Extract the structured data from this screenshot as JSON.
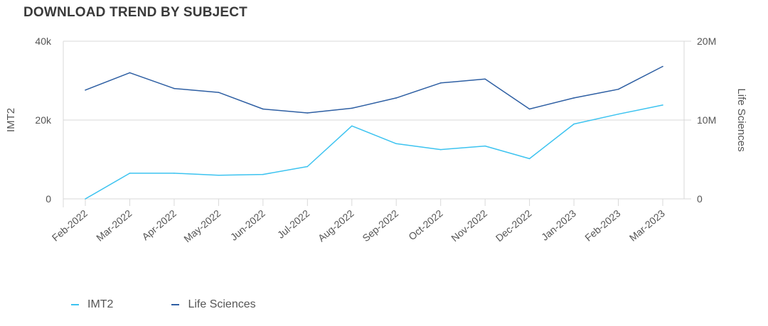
{
  "header": {
    "title": "DOWNLOAD TREND BY SUBJECT"
  },
  "colors": {
    "imt2": "#3cc3f0",
    "life_sciences": "#2e5fa3",
    "grid": "#d9d9d9",
    "text": "#555555"
  },
  "chart_data": {
    "type": "line",
    "categories": [
      "Feb-2022",
      "Mar-2022",
      "Apr-2022",
      "May-2022",
      "Jun-2022",
      "Jul-2022",
      "Aug-2022",
      "Sep-2022",
      "Oct-2022",
      "Nov-2022",
      "Dec-2022",
      "Jan-2023",
      "Feb-2023",
      "Mar-2023"
    ],
    "series": [
      {
        "name": "IMT2",
        "axis": "left",
        "color": "#3cc3f0",
        "values": [
          0,
          6500,
          6500,
          6000,
          6200,
          8200,
          18500,
          14000,
          12500,
          13400,
          10200,
          19000,
          21500,
          23800
        ]
      },
      {
        "name": "Life Sciences",
        "axis": "right",
        "color": "#2e5fa3",
        "values": [
          13800000,
          16000000,
          14000000,
          13500000,
          11400000,
          10900000,
          11500000,
          12800000,
          14700000,
          15200000,
          11400000,
          12800000,
          13900000,
          16800000
        ]
      }
    ],
    "left_axis": {
      "label": "IMT2",
      "ylim": [
        0,
        40000
      ],
      "ticks": [
        0,
        20000,
        40000
      ],
      "tick_labels": [
        "0",
        "20k",
        "40k"
      ]
    },
    "right_axis": {
      "label": "Life Sciences",
      "ylim": [
        0,
        20000000
      ],
      "ticks": [
        0,
        10000000,
        20000000
      ],
      "tick_labels": [
        "0",
        "10M",
        "20M"
      ]
    },
    "grid": true,
    "legend_position": "bottom-left"
  }
}
